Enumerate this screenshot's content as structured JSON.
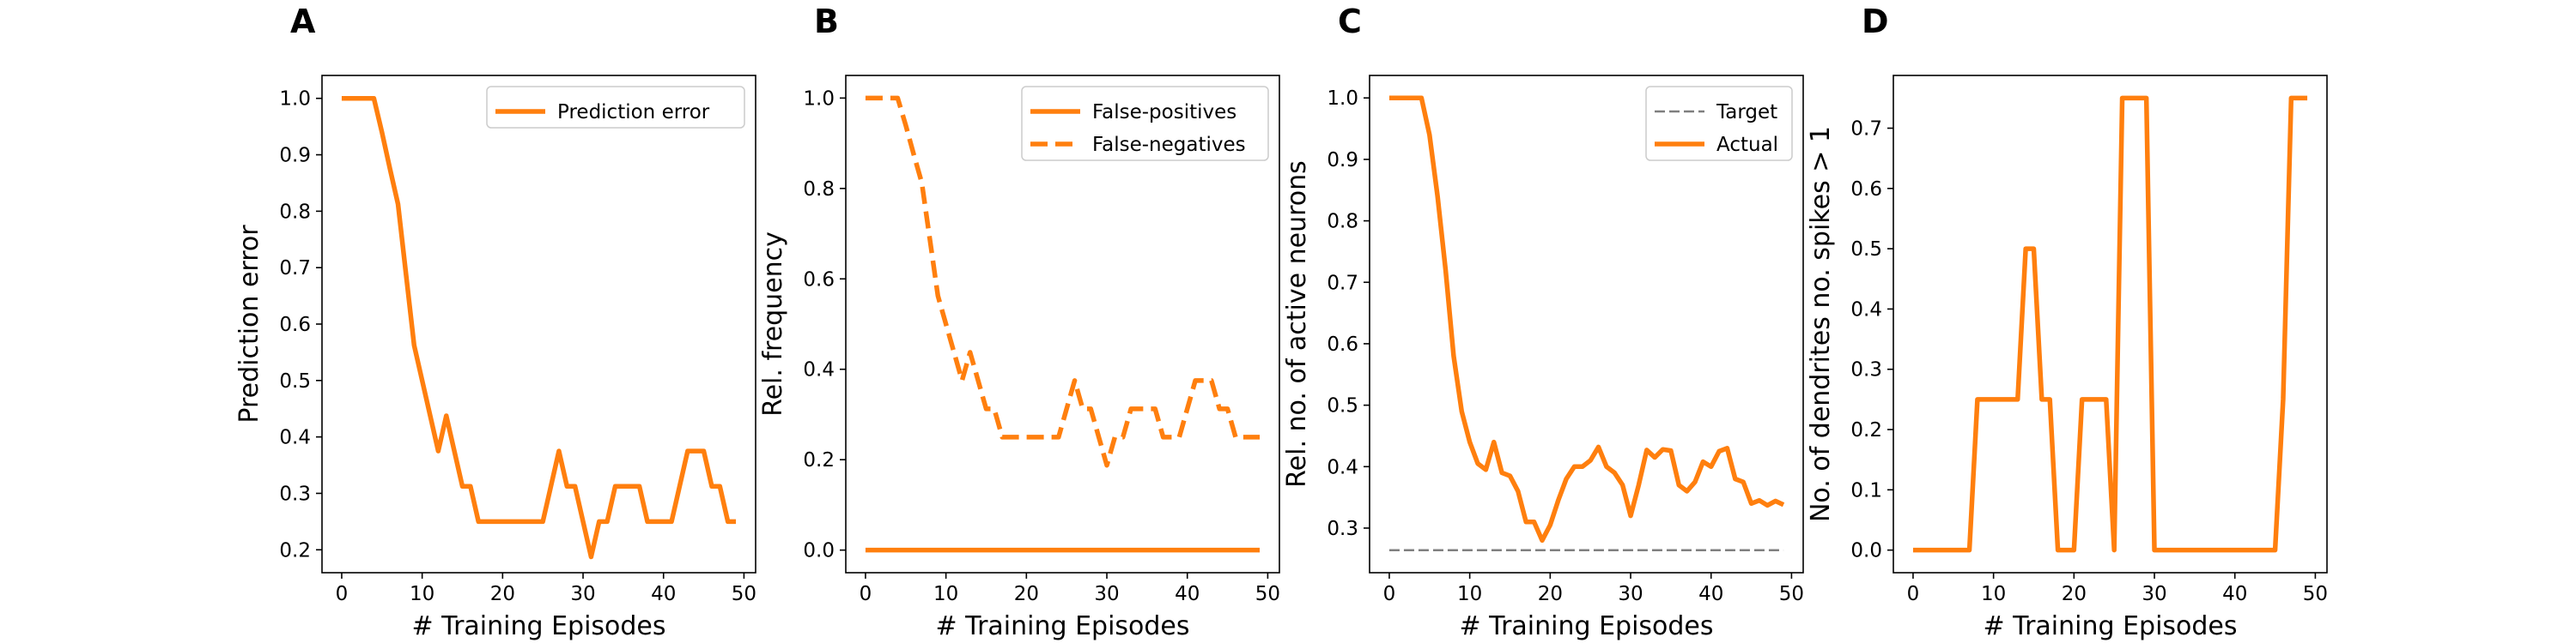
{
  "chart_data": [
    {
      "type": "line",
      "panel": "A",
      "xlabel": "# Training Episodes",
      "ylabel": "Prediction error",
      "xlim": [
        -2.45,
        51.45
      ],
      "ylim": [
        0.1594,
        1.0406
      ],
      "xticks": [
        0,
        10,
        20,
        30,
        40,
        50
      ],
      "yticks": [
        0.2,
        0.3,
        0.4,
        0.5,
        0.6,
        0.7,
        0.8,
        0.9,
        1.0
      ],
      "ytick_labels": [
        "0.2",
        "0.3",
        "0.4",
        "0.5",
        "0.6",
        "0.7",
        "0.8",
        "0.9",
        "1.0"
      ],
      "legend_position": "upper right",
      "series": [
        {
          "name": "Prediction error",
          "color": "#ff7f0e",
          "style": "solid",
          "x": [
            0,
            1,
            2,
            3,
            4,
            5,
            6,
            7,
            8,
            9,
            10,
            11,
            12,
            13,
            14,
            15,
            16,
            17,
            18,
            19,
            20,
            21,
            22,
            23,
            24,
            25,
            26,
            27,
            28,
            29,
            30,
            31,
            32,
            33,
            34,
            35,
            36,
            37,
            38,
            39,
            40,
            41,
            42,
            43,
            44,
            45,
            46,
            47,
            48,
            49
          ],
          "y": [
            1.0,
            1.0,
            1.0,
            1.0,
            1.0,
            0.94,
            0.875,
            0.8125,
            0.6875,
            0.5625,
            0.5,
            0.4375,
            0.375,
            0.4375,
            0.375,
            0.3125,
            0.3125,
            0.25,
            0.25,
            0.25,
            0.25,
            0.25,
            0.25,
            0.25,
            0.25,
            0.25,
            0.3125,
            0.375,
            0.3125,
            0.3125,
            0.25,
            0.1875,
            0.25,
            0.25,
            0.3125,
            0.3125,
            0.3125,
            0.3125,
            0.25,
            0.25,
            0.25,
            0.25,
            0.3125,
            0.375,
            0.375,
            0.375,
            0.3125,
            0.3125,
            0.25,
            0.25
          ]
        }
      ]
    },
    {
      "type": "line",
      "panel": "B",
      "xlabel": "# Training Episodes",
      "ylabel": "Rel. frequency",
      "xlim": [
        -2.45,
        51.45
      ],
      "ylim": [
        -0.05,
        1.05
      ],
      "xticks": [
        0,
        10,
        20,
        30,
        40,
        50
      ],
      "yticks": [
        0.0,
        0.2,
        0.4,
        0.6,
        0.8,
        1.0
      ],
      "ytick_labels": [
        "0.0",
        "0.2",
        "0.4",
        "0.6",
        "0.8",
        "1.0"
      ],
      "legend_position": "upper right",
      "series": [
        {
          "name": "False-positives",
          "color": "#ff7f0e",
          "style": "solid",
          "x": [
            0,
            49
          ],
          "y": [
            0.0,
            0.0
          ]
        },
        {
          "name": "False-negatives",
          "color": "#ff7f0e",
          "style": "dashed",
          "x": [
            0,
            1,
            2,
            3,
            4,
            5,
            6,
            7,
            8,
            9,
            10,
            11,
            12,
            13,
            14,
            15,
            16,
            17,
            18,
            19,
            20,
            21,
            22,
            23,
            24,
            25,
            26,
            27,
            28,
            29,
            30,
            31,
            32,
            33,
            34,
            35,
            36,
            37,
            38,
            39,
            40,
            41,
            42,
            43,
            44,
            45,
            46,
            47,
            48,
            49
          ],
          "y": [
            1.0,
            1.0,
            1.0,
            1.0,
            1.0,
            0.94,
            0.875,
            0.8125,
            0.6875,
            0.5625,
            0.5,
            0.4375,
            0.375,
            0.4375,
            0.375,
            0.3125,
            0.3125,
            0.25,
            0.25,
            0.25,
            0.25,
            0.25,
            0.25,
            0.25,
            0.25,
            0.3125,
            0.375,
            0.3125,
            0.3125,
            0.25,
            0.1875,
            0.25,
            0.25,
            0.3125,
            0.3125,
            0.3125,
            0.3125,
            0.25,
            0.25,
            0.25,
            0.3125,
            0.375,
            0.375,
            0.375,
            0.3125,
            0.3125,
            0.25,
            0.25,
            0.25,
            0.25
          ]
        }
      ]
    },
    {
      "type": "line",
      "panel": "C",
      "xlabel": "# Training Episodes",
      "ylabel": "Rel. no. of active neurons",
      "xlim": [
        -2.45,
        51.45
      ],
      "ylim": [
        0.2274,
        1.0366
      ],
      "xticks": [
        0,
        10,
        20,
        30,
        40,
        50
      ],
      "yticks": [
        0.3,
        0.4,
        0.5,
        0.6,
        0.7,
        0.8,
        0.9,
        1.0
      ],
      "ytick_labels": [
        "0.3",
        "0.4",
        "0.5",
        "0.6",
        "0.7",
        "0.8",
        "0.9",
        "1.0"
      ],
      "legend_position": "upper right",
      "series": [
        {
          "name": "Target",
          "color": "#7f7f7f",
          "style": "dashed",
          "x": [
            0,
            49
          ],
          "y": [
            0.264,
            0.264
          ]
        },
        {
          "name": "Actual",
          "color": "#ff7f0e",
          "style": "solid",
          "x": [
            0,
            1,
            2,
            3,
            4,
            5,
            6,
            7,
            8,
            9,
            10,
            11,
            12,
            13,
            14,
            15,
            16,
            17,
            18,
            19,
            20,
            21,
            22,
            23,
            24,
            25,
            26,
            27,
            28,
            29,
            30,
            31,
            32,
            33,
            34,
            35,
            36,
            37,
            38,
            39,
            40,
            41,
            42,
            43,
            44,
            45,
            46,
            47,
            48,
            49
          ],
          "y": [
            1.0,
            1.0,
            1.0,
            1.0,
            1.0,
            0.94,
            0.84,
            0.72,
            0.58,
            0.49,
            0.44,
            0.405,
            0.395,
            0.44,
            0.39,
            0.385,
            0.36,
            0.31,
            0.31,
            0.28,
            0.305,
            0.345,
            0.38,
            0.4,
            0.4,
            0.41,
            0.432,
            0.4,
            0.39,
            0.37,
            0.32,
            0.37,
            0.427,
            0.415,
            0.428,
            0.426,
            0.37,
            0.36,
            0.375,
            0.408,
            0.4,
            0.425,
            0.43,
            0.38,
            0.375,
            0.34,
            0.345,
            0.337,
            0.344,
            0.338
          ]
        }
      ]
    },
    {
      "type": "line",
      "panel": "D",
      "xlabel": "# Training Episodes",
      "ylabel": "No. of dendrites no. spikes > 1",
      "xlim": [
        -2.45,
        51.45
      ],
      "ylim": [
        -0.0375,
        0.7875
      ],
      "xticks": [
        0,
        10,
        20,
        30,
        40,
        50
      ],
      "yticks": [
        0.0,
        0.1,
        0.2,
        0.3,
        0.4,
        0.5,
        0.6,
        0.7
      ],
      "ytick_labels": [
        "0.0",
        "0.1",
        "0.2",
        "0.3",
        "0.4",
        "0.5",
        "0.6",
        "0.7"
      ],
      "legend_position": "none",
      "series": [
        {
          "name": "",
          "color": "#ff7f0e",
          "style": "solid",
          "x": [
            0,
            1,
            2,
            3,
            4,
            5,
            6,
            7,
            8,
            9,
            10,
            11,
            12,
            13,
            14,
            15,
            16,
            17,
            18,
            19,
            20,
            21,
            22,
            23,
            24,
            25,
            26,
            27,
            28,
            29,
            30,
            31,
            32,
            33,
            34,
            35,
            36,
            37,
            38,
            39,
            40,
            41,
            42,
            43,
            44,
            45,
            46,
            47,
            48,
            49
          ],
          "y": [
            0.0,
            0.0,
            0.0,
            0.0,
            0.0,
            0.0,
            0.0,
            0.0,
            0.25,
            0.25,
            0.25,
            0.25,
            0.25,
            0.25,
            0.5,
            0.5,
            0.25,
            0.25,
            0.0,
            0.0,
            0.0,
            0.25,
            0.25,
            0.25,
            0.25,
            0.0,
            0.75,
            0.75,
            0.75,
            0.75,
            0.0,
            0.0,
            0.0,
            0.0,
            0.0,
            0.0,
            0.0,
            0.0,
            0.0,
            0.0,
            0.0,
            0.0,
            0.0,
            0.0,
            0.0,
            0.0,
            0.25,
            0.75,
            0.75,
            0.75
          ]
        }
      ]
    }
  ]
}
